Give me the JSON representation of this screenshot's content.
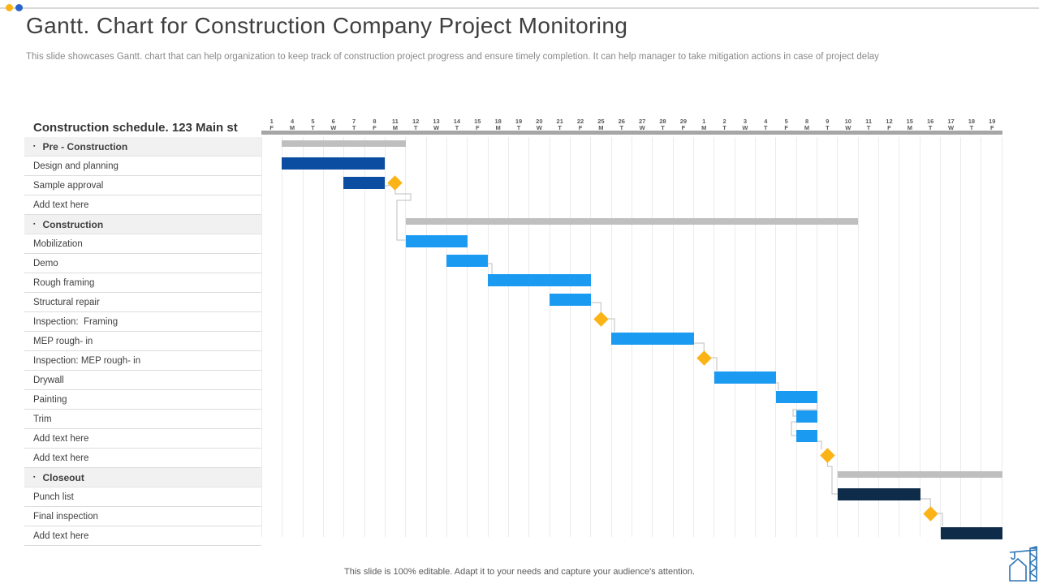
{
  "slide": {
    "title": "Gantt. Chart for Construction Company Project Monitoring",
    "subtitle": "This slide showcases Gantt. chart that can help organization to keep track of construction project progress and ensure timely completion. It can help manager to take mitigation actions in case of project delay",
    "footer": "This slide is 100% editable. Adapt it to your needs and capture your audience's attention."
  },
  "colors": {
    "summary": "#bfbfbf",
    "navy": "#0b4da0",
    "blue": "#1b9af2",
    "darknavy": "#0e2c49",
    "milestone": "#fbb316",
    "axis": "#a6a6a6",
    "connector": "#c9c9c9",
    "accent_yellow": "#fbb316",
    "accent_blue": "#2a63c9",
    "logo_blue": "#2e75b6"
  },
  "chart_data": {
    "type": "gantt",
    "table_header": "Construction schedule. 123 Main st",
    "columns": [
      {
        "day": "1",
        "wd": "F"
      },
      {
        "day": "4",
        "wd": "M"
      },
      {
        "day": "5",
        "wd": "T"
      },
      {
        "day": "6",
        "wd": "W"
      },
      {
        "day": "7",
        "wd": "T"
      },
      {
        "day": "8",
        "wd": "F"
      },
      {
        "day": "11",
        "wd": "M"
      },
      {
        "day": "12",
        "wd": "T"
      },
      {
        "day": "13",
        "wd": "W"
      },
      {
        "day": "14",
        "wd": "T"
      },
      {
        "day": "15",
        "wd": "F"
      },
      {
        "day": "18",
        "wd": "M"
      },
      {
        "day": "19",
        "wd": "T"
      },
      {
        "day": "20",
        "wd": "W"
      },
      {
        "day": "21",
        "wd": "T"
      },
      {
        "day": "22",
        "wd": "F"
      },
      {
        "day": "25",
        "wd": "M"
      },
      {
        "day": "26",
        "wd": "T"
      },
      {
        "day": "27",
        "wd": "W"
      },
      {
        "day": "28",
        "wd": "T"
      },
      {
        "day": "29",
        "wd": "F"
      },
      {
        "day": "1",
        "wd": "M"
      },
      {
        "day": "2",
        "wd": "T"
      },
      {
        "day": "3",
        "wd": "W"
      },
      {
        "day": "4",
        "wd": "T"
      },
      {
        "day": "5",
        "wd": "F"
      },
      {
        "day": "8",
        "wd": "M"
      },
      {
        "day": "9",
        "wd": "T"
      },
      {
        "day": "10",
        "wd": "W"
      },
      {
        "day": "11",
        "wd": "T"
      },
      {
        "day": "12",
        "wd": "F"
      },
      {
        "day": "15",
        "wd": "M"
      },
      {
        "day": "16",
        "wd": "T"
      },
      {
        "day": "17",
        "wd": "W"
      },
      {
        "day": "18",
        "wd": "T"
      },
      {
        "day": "19",
        "wd": "F"
      }
    ],
    "tasks": [
      {
        "label": "Pre - Construction",
        "kind": "section",
        "bar": {
          "style": "summary",
          "start": 2,
          "end": 7
        }
      },
      {
        "label": "Design and planning",
        "kind": "task",
        "bar": {
          "style": "navy",
          "start": 2,
          "end": 6
        }
      },
      {
        "label": "Sample approval",
        "kind": "task",
        "bar": {
          "style": "navy",
          "start": 5,
          "end": 6
        },
        "milestone": 7
      },
      {
        "label": "Add text here",
        "kind": "task"
      },
      {
        "label": "Construction",
        "kind": "section",
        "bar": {
          "style": "summary",
          "start": 8,
          "end": 29
        }
      },
      {
        "label": "Mobilization",
        "kind": "task",
        "bar": {
          "style": "blue",
          "start": 8,
          "end": 10
        }
      },
      {
        "label": "Demo",
        "kind": "task",
        "bar": {
          "style": "blue",
          "start": 10,
          "end": 11
        }
      },
      {
        "label": "Rough framing",
        "kind": "task",
        "bar": {
          "style": "blue",
          "start": 12,
          "end": 16
        }
      },
      {
        "label": "Structural repair",
        "kind": "task",
        "bar": {
          "style": "blue",
          "start": 15,
          "end": 16
        }
      },
      {
        "label": "Inspection:  Framing",
        "kind": "task",
        "milestone": 17
      },
      {
        "label": "MEP rough- in",
        "kind": "task",
        "bar": {
          "style": "blue",
          "start": 18,
          "end": 21
        }
      },
      {
        "label": "Inspection: MEP rough- in",
        "kind": "task",
        "milestone": 22
      },
      {
        "label": "Drywall",
        "kind": "task",
        "bar": {
          "style": "blue",
          "start": 23,
          "end": 25
        }
      },
      {
        "label": "Painting",
        "kind": "task",
        "bar": {
          "style": "blue",
          "start": 26,
          "end": 27
        }
      },
      {
        "label": "Trim",
        "kind": "task",
        "bar": {
          "style": "blue",
          "start": 27,
          "end": 27
        }
      },
      {
        "label": "Add text here",
        "kind": "task",
        "bar": {
          "style": "blue",
          "start": 27,
          "end": 27
        }
      },
      {
        "label": "Add text here",
        "kind": "task",
        "milestone": 28
      },
      {
        "label": "Closeout",
        "kind": "section",
        "bar": {
          "style": "summary",
          "start": 29,
          "end": 36
        }
      },
      {
        "label": "Punch list",
        "kind": "task",
        "bar": {
          "style": "darknavy",
          "start": 29,
          "end": 32
        }
      },
      {
        "label": "Final inspection",
        "kind": "task",
        "milestone": 33
      },
      {
        "label": "Add text here",
        "kind": "task",
        "bar": {
          "style": "darknavy",
          "start": 34,
          "end": 36
        }
      }
    ]
  }
}
